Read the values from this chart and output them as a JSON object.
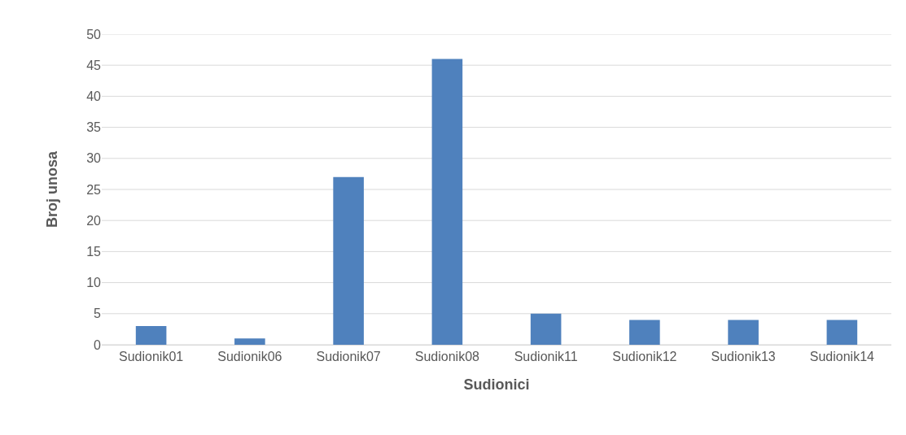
{
  "chart_data": {
    "type": "bar",
    "xlabel": "Sudionici",
    "ylabel": "Broj unosa",
    "categories": [
      "Sudionik01",
      "Sudionik06",
      "Sudionik07",
      "Sudionik08",
      "Sudionik11",
      "Sudionik12",
      "Sudionik13",
      "Sudionik14"
    ],
    "values": [
      3,
      1,
      27,
      46,
      5,
      4,
      4,
      4
    ],
    "color": "#4f81bd",
    "ylim": [
      0,
      50
    ],
    "yticks": [
      0,
      5,
      10,
      15,
      20,
      25,
      30,
      35,
      40,
      45,
      50
    ],
    "grid": "y"
  }
}
